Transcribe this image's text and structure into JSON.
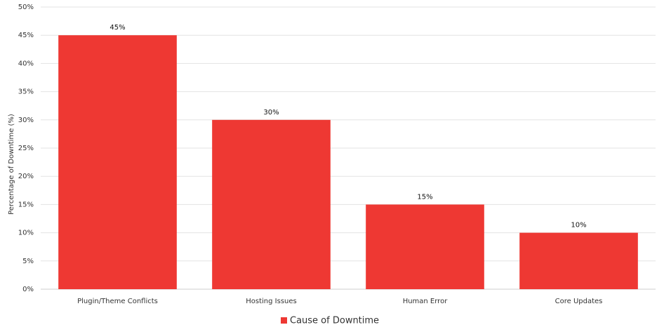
{
  "chart_data": {
    "type": "bar",
    "y_label": "Percentage of Downtime (%)",
    "categories": [
      "Plugin/Theme Conflicts",
      "Hosting Issues",
      "Human Error",
      "Core Updates"
    ],
    "series": [
      {
        "name": "Cause of Downtime",
        "color": "#ee3833",
        "values": [
          45,
          30,
          15,
          10
        ],
        "value_labels": [
          "45%",
          "30%",
          "15%",
          "10%"
        ]
      }
    ],
    "ylim": [
      0,
      50
    ],
    "yticks": [
      {
        "value": 0,
        "label": "0%"
      },
      {
        "value": 5,
        "label": "5%"
      },
      {
        "value": 10,
        "label": "10%"
      },
      {
        "value": 15,
        "label": "15%"
      },
      {
        "value": 20,
        "label": "20%"
      },
      {
        "value": 25,
        "label": "25%"
      },
      {
        "value": 30,
        "label": "30%"
      },
      {
        "value": 35,
        "label": "35%"
      },
      {
        "value": 40,
        "label": "40%"
      },
      {
        "value": 45,
        "label": "45%"
      },
      {
        "value": 50,
        "label": "50%"
      }
    ],
    "grid": true,
    "legend": "bottom"
  }
}
